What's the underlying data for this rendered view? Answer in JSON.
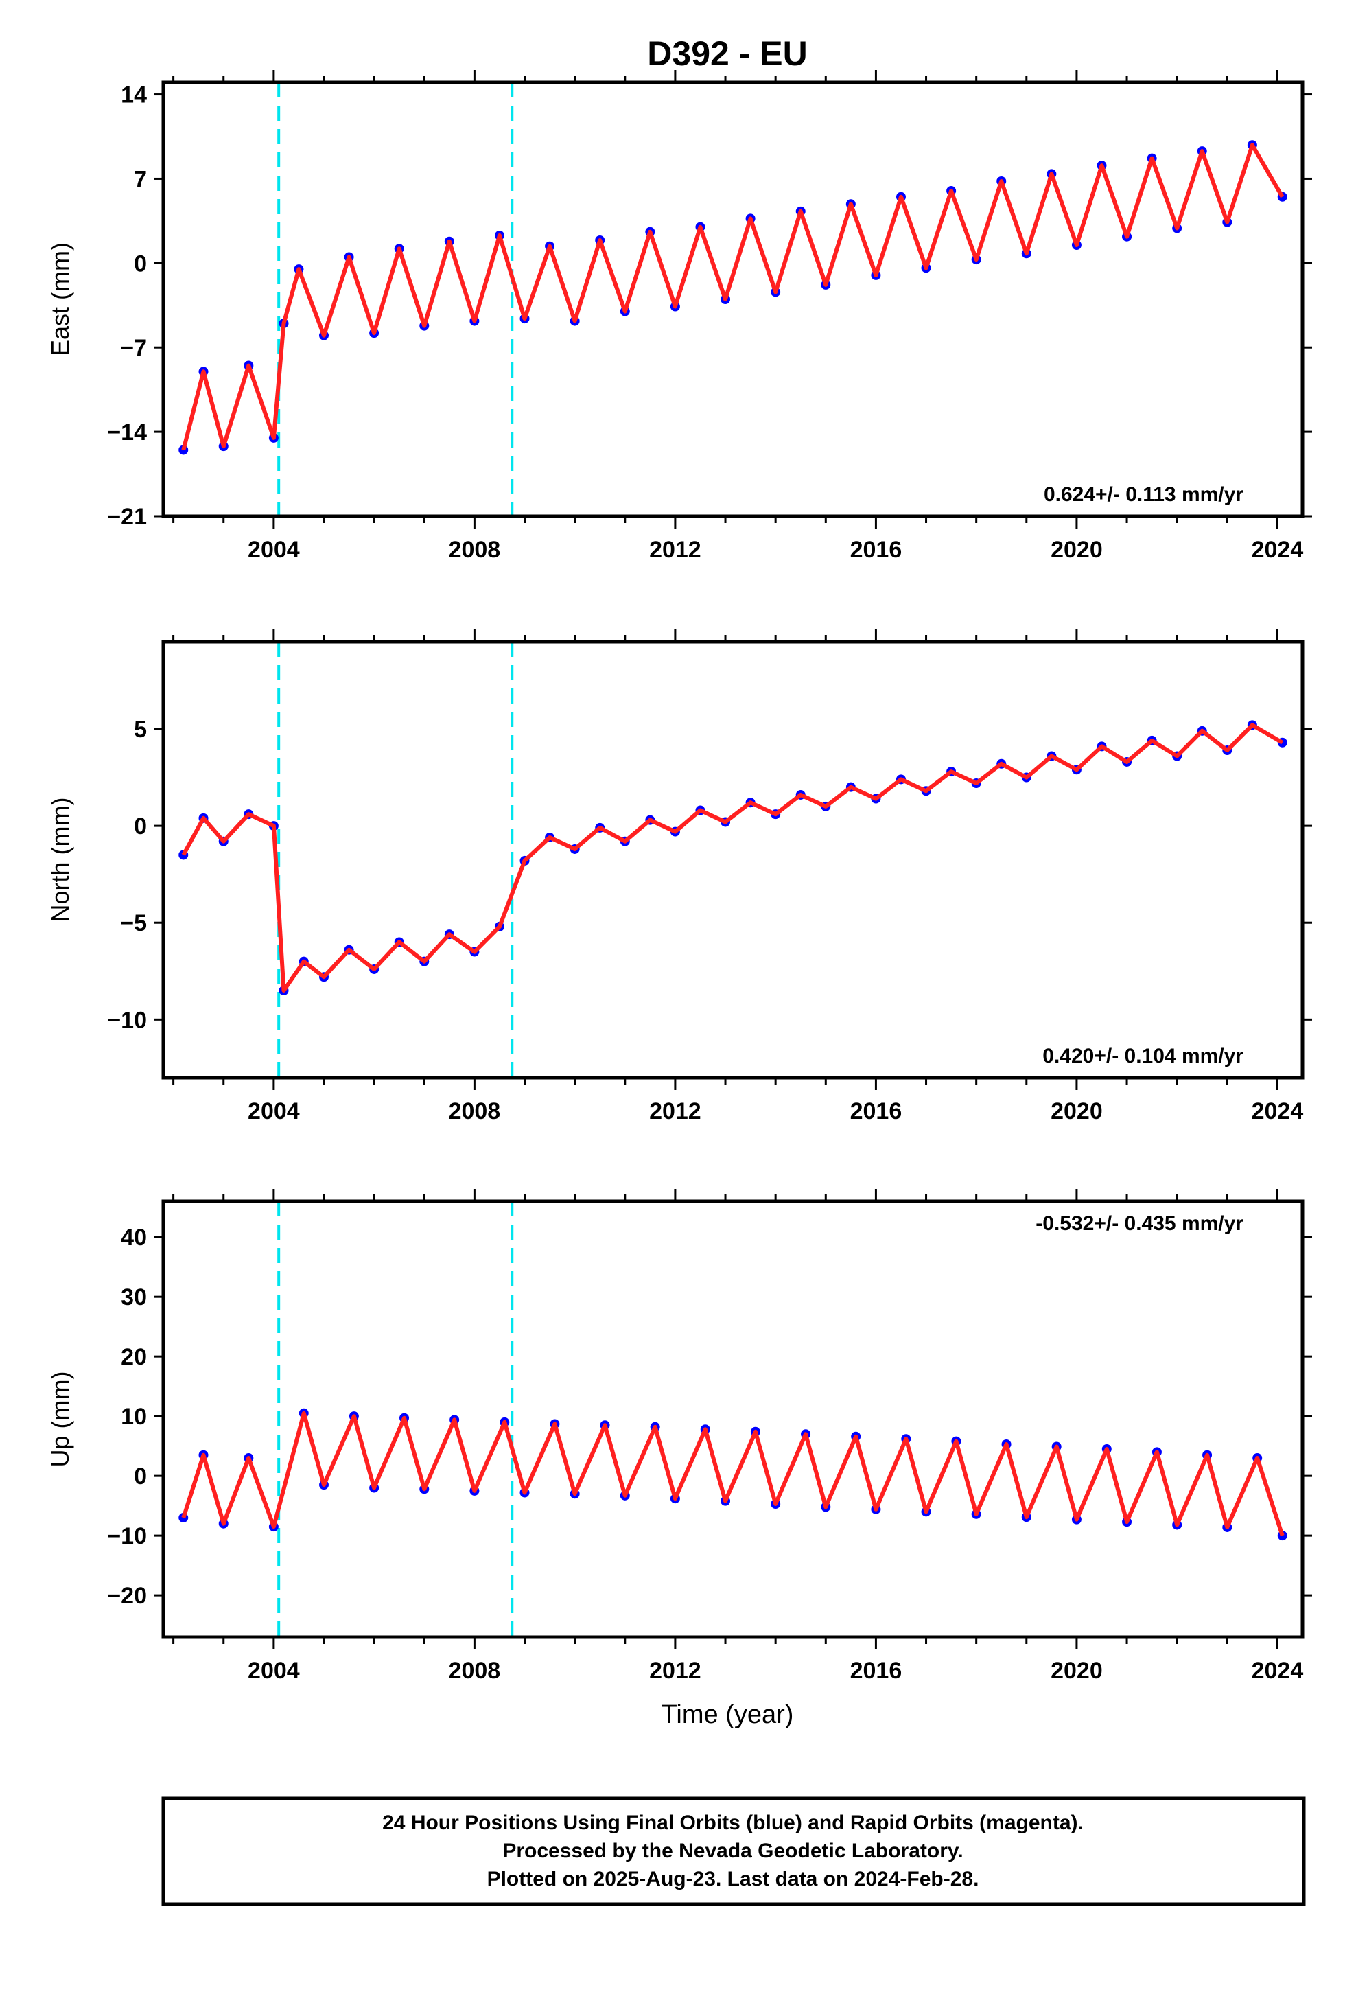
{
  "figure": {
    "title": "D392 - EU",
    "footer_lines": [
      "24 Hour Positions Using Final Orbits (blue) and Rapid Orbits (magenta).",
      "Processed by the Nevada Geodetic Laboratory.",
      "Plotted on 2025-Aug-23. Last data on 2024-Feb-28."
    ],
    "colors": {
      "final_orbits": "#0000ff",
      "model_fit": "#ff2020",
      "offset_lines": "#00e5ee",
      "axes": "#000000"
    }
  },
  "chart_data": [
    {
      "type": "scatter",
      "ylabel": "East (mm)",
      "xlim": [
        2001.8,
        2024.5
      ],
      "ylim": [
        -21,
        15
      ],
      "xticks": [
        2004,
        2008,
        2012,
        2016,
        2020,
        2024
      ],
      "yticks": [
        -21,
        -14,
        -7,
        0,
        7,
        14
      ],
      "ytick_labels": [
        "−21",
        "−14",
        "−7",
        "0",
        "7",
        "14"
      ],
      "rate_label": "0.624+/- 0.113 mm/yr",
      "rate_position": "bottom-right",
      "offset_epochs": [
        2004.1,
        2008.75
      ],
      "series": [
        {
          "x": [
            2002.2,
            2002.6,
            2003.0,
            2003.5,
            2004.0,
            2004.2,
            2004.5,
            2005.0,
            2005.5,
            2006.0,
            2006.5,
            2007.0,
            2007.5,
            2008.0,
            2008.5,
            2009.0,
            2009.5,
            2010.0,
            2010.5,
            2011.0,
            2011.5,
            2012.0,
            2012.5,
            2013.0,
            2013.5,
            2014.0,
            2014.5,
            2015.0,
            2015.5,
            2016.0,
            2016.5,
            2017.0,
            2017.5,
            2018.0,
            2018.5,
            2019.0,
            2019.5,
            2020.0,
            2020.5,
            2021.0,
            2021.5,
            2022.0,
            2022.5,
            2023.0,
            2023.5,
            2024.1
          ],
          "y": [
            -15.5,
            -9.0,
            -15.2,
            -8.5,
            -14.5,
            -5.0,
            -0.5,
            -6.0,
            0.5,
            -5.8,
            1.2,
            -5.2,
            1.8,
            -4.8,
            2.3,
            -4.6,
            1.4,
            -4.8,
            1.9,
            -4.0,
            2.6,
            -3.6,
            3.0,
            -3.0,
            3.7,
            -2.4,
            4.3,
            -1.8,
            4.9,
            -1.0,
            5.5,
            -0.4,
            6.0,
            0.3,
            6.8,
            0.8,
            7.4,
            1.5,
            8.1,
            2.2,
            8.7,
            2.9,
            9.3,
            3.4,
            9.8,
            5.5
          ]
        }
      ]
    },
    {
      "type": "scatter",
      "ylabel": "North (mm)",
      "xlim": [
        2001.8,
        2024.5
      ],
      "ylim": [
        -13,
        9.5
      ],
      "xticks": [
        2004,
        2008,
        2012,
        2016,
        2020,
        2024
      ],
      "yticks": [
        -10,
        -5,
        0,
        5
      ],
      "ytick_labels": [
        "−10",
        "−5",
        "0",
        "5"
      ],
      "rate_label": "0.420+/- 0.104 mm/yr",
      "rate_position": "bottom-right",
      "offset_epochs": [
        2004.1,
        2008.75
      ],
      "series": [
        {
          "x": [
            2002.2,
            2002.6,
            2003.0,
            2003.5,
            2004.0,
            2004.2,
            2004.6,
            2005.0,
            2005.5,
            2006.0,
            2006.5,
            2007.0,
            2007.5,
            2008.0,
            2008.5,
            2009.0,
            2009.5,
            2010.0,
            2010.5,
            2011.0,
            2011.5,
            2012.0,
            2012.5,
            2013.0,
            2013.5,
            2014.0,
            2014.5,
            2015.0,
            2015.5,
            2016.0,
            2016.5,
            2017.0,
            2017.5,
            2018.0,
            2018.5,
            2019.0,
            2019.5,
            2020.0,
            2020.5,
            2021.0,
            2021.5,
            2022.0,
            2022.5,
            2023.0,
            2023.5,
            2024.1
          ],
          "y": [
            -1.5,
            0.4,
            -0.8,
            0.6,
            0.0,
            -8.5,
            -7.0,
            -7.8,
            -6.4,
            -7.4,
            -6.0,
            -7.0,
            -5.6,
            -6.5,
            -5.2,
            -1.8,
            -0.6,
            -1.2,
            -0.1,
            -0.8,
            0.3,
            -0.3,
            0.8,
            0.2,
            1.2,
            0.6,
            1.6,
            1.0,
            2.0,
            1.4,
            2.4,
            1.8,
            2.8,
            2.2,
            3.2,
            2.5,
            3.6,
            2.9,
            4.1,
            3.3,
            4.4,
            3.6,
            4.9,
            3.9,
            5.2,
            4.3
          ]
        }
      ]
    },
    {
      "type": "scatter",
      "ylabel": "Up (mm)",
      "xlabel": "Time (year)",
      "xlim": [
        2001.8,
        2024.5
      ],
      "ylim": [
        -27,
        46
      ],
      "xticks": [
        2004,
        2008,
        2012,
        2016,
        2020,
        2024
      ],
      "yticks": [
        -20,
        -10,
        0,
        10,
        20,
        30,
        40
      ],
      "ytick_labels": [
        "−20",
        "−10",
        "0",
        "10",
        "20",
        "30",
        "40"
      ],
      "rate_label": "-0.532+/- 0.435 mm/yr",
      "rate_position": "top-right",
      "offset_epochs": [
        2004.1,
        2008.75
      ],
      "series": [
        {
          "x": [
            2002.2,
            2002.6,
            2003.0,
            2003.5,
            2004.0,
            2004.6,
            2005.0,
            2005.6,
            2006.0,
            2006.6,
            2007.0,
            2007.6,
            2008.0,
            2008.6,
            2009.0,
            2009.6,
            2010.0,
            2010.6,
            2011.0,
            2011.6,
            2012.0,
            2012.6,
            2013.0,
            2013.6,
            2014.0,
            2014.6,
            2015.0,
            2015.6,
            2016.0,
            2016.6,
            2017.0,
            2017.6,
            2018.0,
            2018.6,
            2019.0,
            2019.6,
            2020.0,
            2020.6,
            2021.0,
            2021.6,
            2022.0,
            2022.6,
            2023.0,
            2023.6,
            2024.1
          ],
          "y": [
            -7.0,
            3.5,
            -8.0,
            3.0,
            -8.5,
            10.5,
            -1.5,
            10.0,
            -2.0,
            9.7,
            -2.2,
            9.4,
            -2.5,
            9.0,
            -2.8,
            8.7,
            -3.0,
            8.5,
            -3.3,
            8.2,
            -3.8,
            7.8,
            -4.2,
            7.4,
            -4.7,
            7.0,
            -5.2,
            6.6,
            -5.6,
            6.2,
            -6.0,
            5.8,
            -6.4,
            5.3,
            -6.9,
            4.9,
            -7.3,
            4.5,
            -7.7,
            4.0,
            -8.2,
            3.5,
            -8.6,
            3.0,
            -10.0
          ]
        }
      ]
    }
  ]
}
